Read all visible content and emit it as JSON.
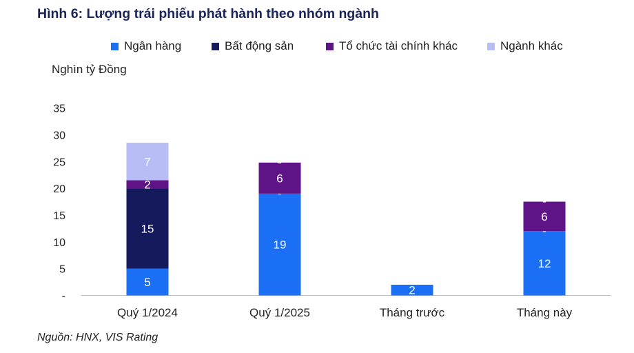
{
  "chart_data": {
    "type": "bar",
    "stacked": true,
    "title": "Hình 6: Lượng trái phiếu phát hành theo nhóm ngành",
    "ylabel": "Nghìn tỷ Đồng",
    "source": "Nguồn: HNX, VIS Rating",
    "categories": [
      "Quý 1/2024",
      "Quý 1/2025",
      "Tháng trước",
      "Tháng này"
    ],
    "ylim": [
      0,
      35
    ],
    "yticks": [
      0,
      5,
      10,
      15,
      20,
      25,
      30,
      35
    ],
    "ytick_labels": [
      "-",
      "5",
      "10",
      "15",
      "20",
      "25",
      "30",
      "35"
    ],
    "legend_position": "top",
    "grid": false,
    "series": [
      {
        "name": "Ngân hàng",
        "color": "#1b6ff5",
        "values": [
          5,
          19,
          2,
          12
        ],
        "labels": [
          "5",
          "19",
          "2",
          "12"
        ]
      },
      {
        "name": "Bất động sản",
        "color": "#141a5c",
        "values": [
          15,
          0,
          0,
          0
        ],
        "labels": [
          "15",
          "-",
          "",
          "-"
        ]
      },
      {
        "name": "Tổ chức tài chính khác",
        "color": "#5e1387",
        "values": [
          1.5,
          5.8,
          0,
          5.5
        ],
        "labels": [
          "2",
          "6",
          "",
          "6"
        ]
      },
      {
        "name": "Ngành khác",
        "color": "#b8bdf5",
        "values": [
          7,
          0,
          0,
          0
        ],
        "labels": [
          "7",
          "-",
          "",
          "-"
        ]
      }
    ]
  }
}
